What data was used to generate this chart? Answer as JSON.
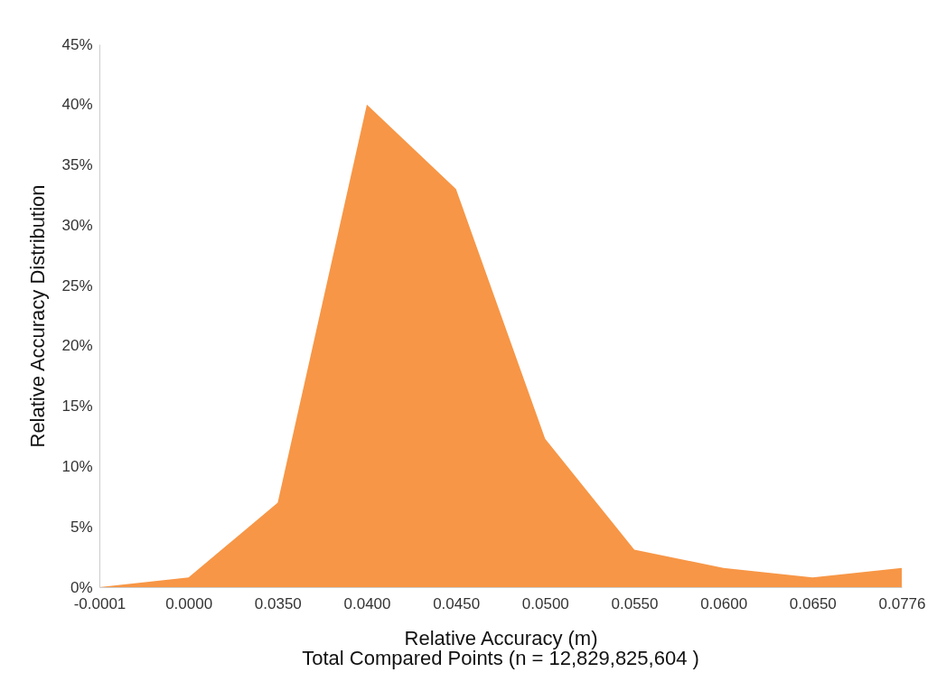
{
  "chart_data": {
    "type": "area",
    "xlabel": "Relative Accuracy (m)",
    "ylabel": "Relative Accuracy Distribution",
    "annotations": [
      "Total Compared Points (n = 12,829,825,604 )"
    ],
    "categories": [
      "-0.0001",
      "0.0000",
      "0.0350",
      "0.0400",
      "0.0450",
      "0.0500",
      "0.0550",
      "0.0600",
      "0.0650",
      "0.0776"
    ],
    "values": [
      0,
      0.8,
      7,
      40,
      33,
      12.3,
      3.1,
      1.6,
      0.8,
      1.6
    ],
    "color": "#f79646",
    "ylim": [
      0,
      45
    ],
    "yticks": [
      {
        "value": 0,
        "label": "0%"
      },
      {
        "value": 5,
        "label": "5%"
      },
      {
        "value": 10,
        "label": "10%"
      },
      {
        "value": 15,
        "label": "15%"
      },
      {
        "value": 20,
        "label": "20%"
      },
      {
        "value": 25,
        "label": "25%"
      },
      {
        "value": 30,
        "label": "30%"
      },
      {
        "value": 35,
        "label": "35%"
      },
      {
        "value": 40,
        "label": "40%"
      },
      {
        "value": 45,
        "label": "45%"
      }
    ],
    "grid": false
  }
}
